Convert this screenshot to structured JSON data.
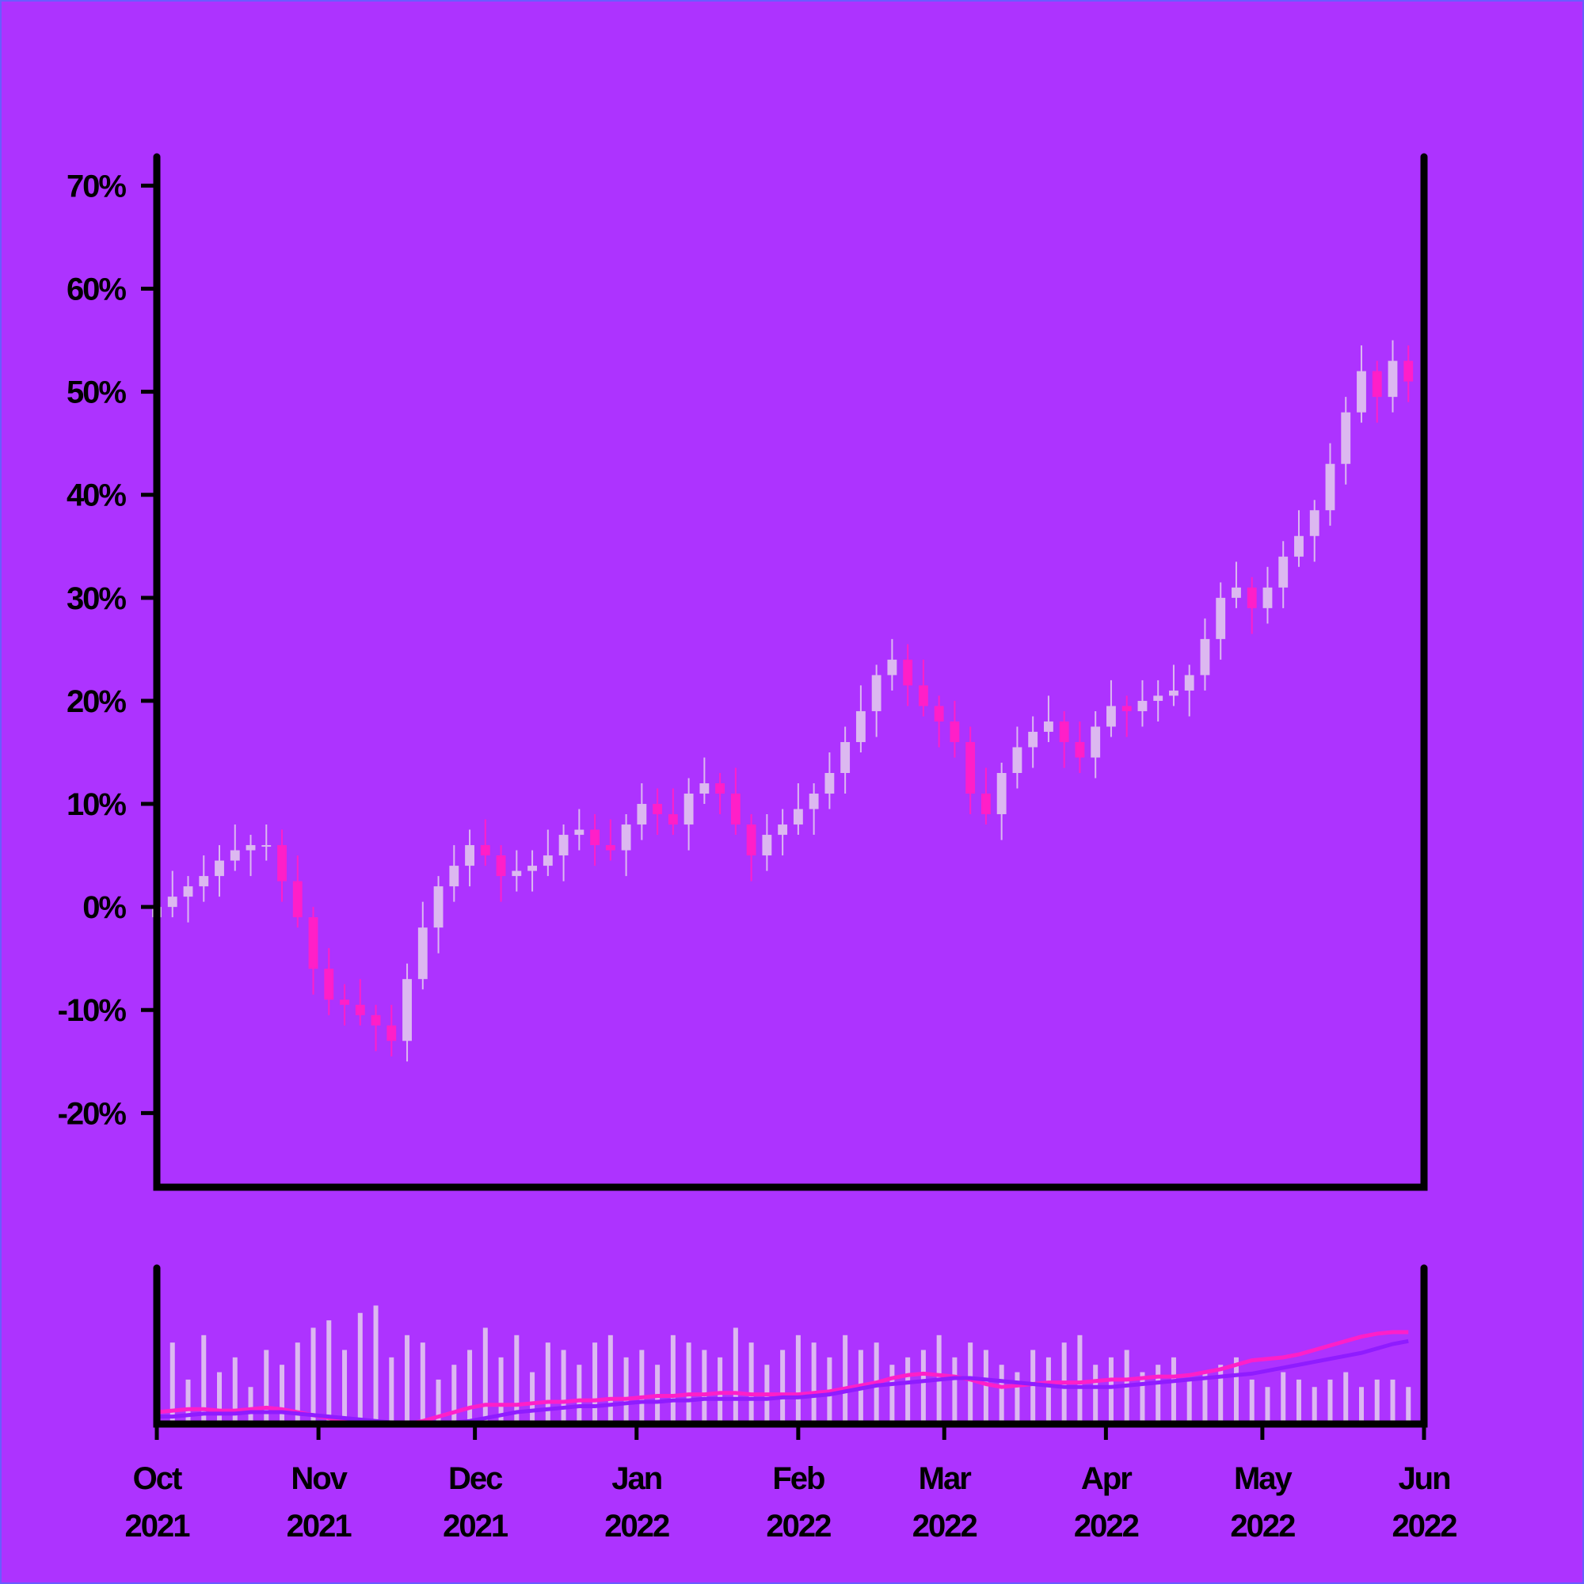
{
  "chart_data": {
    "type": "candlestick",
    "x": [
      0,
      3,
      6,
      9,
      12,
      15,
      18,
      21,
      24,
      27,
      30,
      33,
      36,
      39,
      42,
      45,
      48,
      51,
      54,
      57,
      60,
      63,
      66,
      69,
      72,
      75,
      78,
      81,
      84,
      87,
      90,
      93,
      96,
      99,
      102,
      105,
      108,
      111,
      114,
      117,
      120,
      123,
      126,
      129,
      132,
      135,
      138,
      141,
      144,
      147,
      150,
      153,
      156,
      159,
      162,
      165,
      168,
      171,
      174,
      177,
      180,
      183,
      186,
      189,
      192,
      195,
      198,
      201,
      204,
      207,
      210,
      213,
      216,
      219,
      222,
      225,
      228,
      231,
      234,
      237,
      240
    ],
    "open": [
      -1,
      0,
      1,
      2,
      3,
      4.5,
      5.5,
      6,
      6,
      2.5,
      -1,
      -6,
      -9,
      -9.5,
      -10.5,
      -11.5,
      -13,
      -7,
      -2,
      2,
      4,
      6,
      5,
      3,
      3.5,
      4,
      5,
      7,
      7.5,
      6,
      5.5,
      8,
      10,
      9,
      8,
      11,
      12,
      11,
      8,
      5,
      7,
      8,
      9.5,
      11,
      13,
      16,
      19,
      22.5,
      24,
      21.5,
      19.5,
      18,
      16,
      11,
      9,
      13,
      15.5,
      17,
      18,
      16,
      14.5,
      17.5,
      19.5,
      19,
      20,
      20.5,
      21,
      22.5,
      26,
      30,
      31,
      29,
      31,
      34,
      36,
      38.5,
      43,
      48,
      52,
      49.5,
      53
    ],
    "high": [
      1.5,
      3.5,
      3,
      5,
      6,
      8,
      7,
      8,
      7.5,
      5,
      0,
      -4,
      -7.5,
      -7,
      -9.5,
      -9.5,
      -5.5,
      0.5,
      3,
      6,
      7.5,
      8.5,
      6,
      5.5,
      5.5,
      7.5,
      8,
      9.5,
      9,
      8.5,
      9,
      12,
      11.5,
      11.5,
      12.5,
      14.5,
      13,
      13.5,
      9,
      9,
      9.5,
      12,
      12,
      15,
      17.5,
      21.5,
      23.5,
      26,
      25.5,
      24,
      20.5,
      20,
      17.5,
      13.5,
      14,
      17.5,
      18.5,
      20.5,
      19,
      18,
      19,
      22,
      20.5,
      22,
      22,
      23.5,
      23.5,
      28,
      31.5,
      33.5,
      32,
      33,
      35.5,
      38.5,
      39.5,
      45,
      49.5,
      54.5,
      53,
      55,
      54.5
    ],
    "low": [
      -3,
      -1,
      -1.5,
      0.5,
      1,
      3.5,
      3,
      4.5,
      0.5,
      -2,
      -8.5,
      -10.5,
      -11.5,
      -11.5,
      -14,
      -14.5,
      -15,
      -8,
      -4.5,
      0.5,
      2,
      4,
      0.5,
      1.5,
      1.5,
      3,
      2.5,
      5.5,
      4,
      4.5,
      3,
      6.5,
      7,
      7,
      5.5,
      10,
      9,
      7,
      2.5,
      3.5,
      5,
      7,
      7,
      9.5,
      11,
      15,
      16.5,
      21,
      19.5,
      18.5,
      15.5,
      14.5,
      9,
      8,
      6.5,
      11.5,
      13.5,
      16,
      13.5,
      13,
      12.5,
      16.5,
      16.5,
      17.5,
      18,
      19.5,
      18.5,
      21,
      24,
      29,
      26.5,
      27.5,
      29,
      33,
      33.5,
      37,
      41,
      47,
      47,
      48,
      49
    ],
    "close": [
      0,
      1,
      2,
      3,
      4.5,
      5.5,
      6,
      6,
      2.5,
      -1,
      -6,
      -9,
      -9.5,
      -10.5,
      -11.5,
      -13,
      -7,
      -2,
      2,
      4,
      6,
      5,
      3,
      3.5,
      4,
      5,
      7,
      7.5,
      6,
      5.5,
      8,
      10,
      9,
      8,
      11,
      12,
      11,
      8,
      5,
      7,
      8,
      9.5,
      11,
      13,
      16,
      19,
      22.5,
      24,
      21.5,
      19.5,
      18,
      16,
      11,
      9,
      13,
      15.5,
      17,
      18,
      16,
      14.5,
      17.5,
      19.5,
      19,
      20,
      20.5,
      21,
      22.5,
      26,
      30,
      31,
      29,
      31,
      34,
      36,
      38.5,
      43,
      48,
      52,
      49.5,
      53,
      51
    ],
    "up_color": "#dcb8f0",
    "down_color": "#ff1fc8",
    "xlim": [
      0,
      243
    ],
    "xticks": [
      {
        "value": 0,
        "label": "Oct 2021"
      },
      {
        "value": 31,
        "label": "Nov 2021"
      },
      {
        "value": 61,
        "label": "Dec 2021"
      },
      {
        "value": 92,
        "label": "Jan 2022"
      },
      {
        "value": 123,
        "label": "Feb 2022"
      },
      {
        "value": 151,
        "label": "Mar 2022"
      },
      {
        "value": 182,
        "label": "Apr 2022"
      },
      {
        "value": 212,
        "label": "May 2022"
      },
      {
        "value": 243,
        "label": "Jun 2022"
      }
    ],
    "ylim": [
      -27.2,
      72.8
    ],
    "yticks": [
      {
        "value": -20,
        "label": "-20%"
      },
      {
        "value": -10,
        "label": "-10%"
      },
      {
        "value": 0,
        "label": "0%"
      },
      {
        "value": 10,
        "label": "10%"
      },
      {
        "value": 20,
        "label": "20%"
      },
      {
        "value": 30,
        "label": "30%"
      },
      {
        "value": 40,
        "label": "40%"
      },
      {
        "value": 50,
        "label": "50%"
      },
      {
        "value": 60,
        "label": "60%"
      },
      {
        "value": 70,
        "label": "70%"
      }
    ],
    "volume": {
      "color": "#dcb8f0",
      "ylim": [
        0,
        100
      ],
      "values": [
        40,
        55,
        30,
        60,
        35,
        45,
        25,
        50,
        40,
        55,
        65,
        70,
        50,
        75,
        80,
        45,
        60,
        55,
        30,
        40,
        50,
        65,
        45,
        60,
        35,
        55,
        50,
        40,
        55,
        60,
        45,
        50,
        40,
        60,
        55,
        50,
        45,
        65,
        55,
        40,
        50,
        60,
        55,
        45,
        60,
        50,
        55,
        40,
        45,
        50,
        60,
        45,
        55,
        50,
        40,
        35,
        50,
        45,
        55,
        60,
        40,
        45,
        50,
        35,
        40,
        45,
        30,
        35,
        40,
        45,
        30,
        25,
        35,
        30,
        25,
        30,
        35,
        25,
        30,
        30,
        25
      ]
    },
    "lines": [
      {
        "color": "#ff1fc8",
        "values": [
          8,
          9,
          10,
          10,
          9,
          9,
          10,
          11,
          10,
          8,
          6,
          4,
          2,
          1,
          0,
          0,
          0,
          2,
          5,
          8,
          11,
          13,
          13,
          13,
          14,
          15,
          15,
          16,
          16,
          17,
          17,
          18,
          19,
          19,
          20,
          20,
          21,
          21,
          20,
          20,
          20,
          20,
          21,
          22,
          24,
          26,
          28,
          31,
          33,
          34,
          33,
          32,
          30,
          27,
          25,
          26,
          27,
          28,
          28,
          28,
          29,
          30,
          30,
          31,
          32,
          32,
          33,
          35,
          37,
          40,
          43,
          44,
          45,
          47,
          50,
          53,
          56,
          59,
          61,
          62,
          62
        ]
      },
      {
        "color": "#8f1cff",
        "values": [
          5,
          5,
          6,
          7,
          7,
          7,
          8,
          8,
          8,
          7,
          6,
          5,
          4,
          3,
          2,
          1,
          0,
          0,
          0,
          1,
          2,
          4,
          6,
          8,
          9,
          10,
          11,
          12,
          12,
          13,
          14,
          15,
          15,
          16,
          16,
          17,
          17,
          17,
          17,
          17,
          18,
          18,
          19,
          20,
          22,
          24,
          26,
          27,
          28,
          29,
          30,
          31,
          31,
          30,
          29,
          28,
          27,
          26,
          25,
          25,
          25,
          25,
          26,
          27,
          28,
          29,
          30,
          31,
          32,
          33,
          34,
          36,
          38,
          40,
          42,
          44,
          46,
          48,
          51,
          54,
          56
        ]
      }
    ]
  }
}
